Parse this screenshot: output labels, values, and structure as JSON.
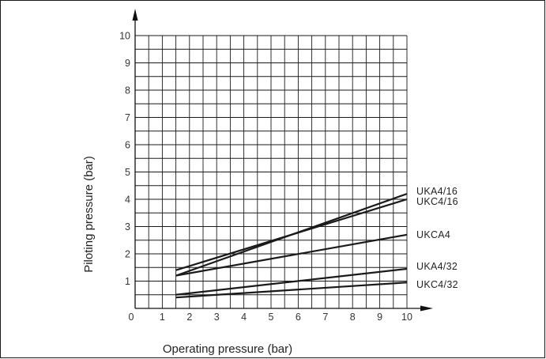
{
  "chart_data": {
    "type": "line",
    "title": "",
    "xlabel": "Operating pressure (bar)",
    "ylabel": "Piloting pressure (bar)",
    "xlim": [
      0,
      10
    ],
    "ylim": [
      0,
      10
    ],
    "grid": true,
    "grid_step": 0.5,
    "legend": "right-end-labels",
    "x_ticks": [
      "0",
      "1",
      "2",
      "3",
      "4",
      "5",
      "6",
      "7",
      "8",
      "9",
      "10"
    ],
    "y_ticks": [
      "1",
      "2",
      "3",
      "4",
      "5",
      "6",
      "7",
      "8",
      "9",
      "10"
    ],
    "series": [
      {
        "name": "UKA4/16",
        "x": [
          1.5,
          10
        ],
        "y": [
          1.2,
          4.2
        ]
      },
      {
        "name": "UKC4/16",
        "x": [
          1.5,
          10
        ],
        "y": [
          1.4,
          4.0
        ]
      },
      {
        "name": "UKCA4",
        "x": [
          1.5,
          10
        ],
        "y": [
          1.2,
          2.7
        ]
      },
      {
        "name": "UKA4/32",
        "x": [
          1.5,
          10
        ],
        "y": [
          0.5,
          1.45
        ]
      },
      {
        "name": "UKC4/32",
        "x": [
          1.5,
          10
        ],
        "y": [
          0.4,
          0.95
        ]
      }
    ],
    "line_color": "#1a1a1a",
    "grid_color": "#1a1a1a"
  }
}
